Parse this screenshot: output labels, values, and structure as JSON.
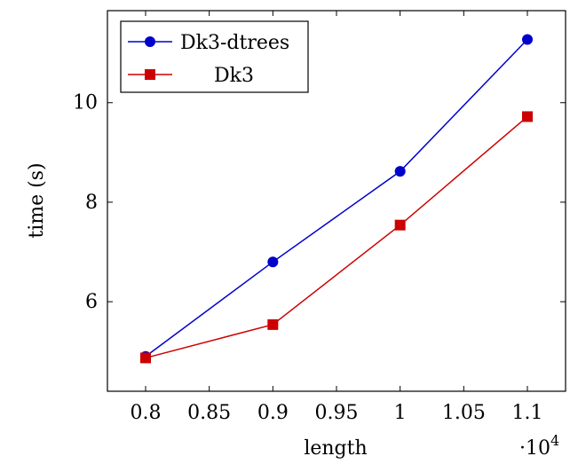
{
  "chart_data": {
    "type": "line",
    "xlabel": "length",
    "ylabel": "time (s)",
    "x_multiplier_label": "·10",
    "x_multiplier_exponent": "4",
    "xlim": [
      7700,
      11300
    ],
    "ylim": [
      4.2,
      11.85
    ],
    "x_ticks": [
      {
        "value": 8000,
        "label": "0.8"
      },
      {
        "value": 8500,
        "label": "0.85"
      },
      {
        "value": 9000,
        "label": "0.9"
      },
      {
        "value": 9500,
        "label": "0.95"
      },
      {
        "value": 10000,
        "label": "1"
      },
      {
        "value": 10500,
        "label": "1.05"
      },
      {
        "value": 11000,
        "label": "1.1"
      }
    ],
    "y_ticks": [
      {
        "value": 6,
        "label": "6"
      },
      {
        "value": 8,
        "label": "8"
      },
      {
        "value": 10,
        "label": "10"
      }
    ],
    "legend_position": "top-left",
    "series": [
      {
        "name": "Dk3-dtrees",
        "color": "#0000cc",
        "marker": "circle",
        "x": [
          8000,
          9000,
          10000,
          11000
        ],
        "y": [
          4.9,
          6.8,
          8.62,
          11.27
        ]
      },
      {
        "name": "Dk3",
        "color": "#cc0000",
        "marker": "square",
        "x": [
          8000,
          9000,
          10000,
          11000
        ],
        "y": [
          4.87,
          5.54,
          7.54,
          9.72
        ]
      }
    ]
  }
}
